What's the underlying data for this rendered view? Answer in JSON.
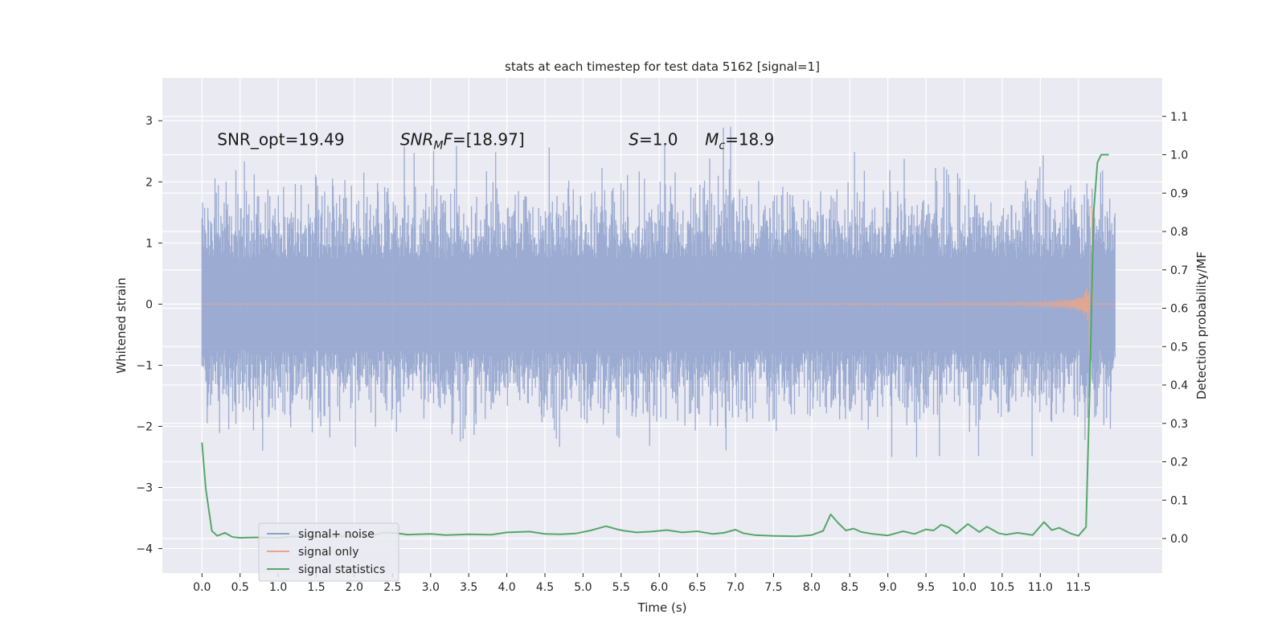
{
  "chart_data": {
    "type": "line",
    "title": "stats at each timestep for test data 5162 [signal=1]",
    "xlabel": "Time (s)",
    "ylabel": "Whitened strain",
    "y2label": "Detection probability/MF",
    "xlim": [
      -0.52,
      12.6
    ],
    "ylim": [
      -4.4,
      3.7
    ],
    "y2lim": [
      -0.09,
      1.2
    ],
    "xticks": [
      "0.0",
      "0.5",
      "1.0",
      "1.5",
      "2.0",
      "2.5",
      "3.0",
      "3.5",
      "4.0",
      "4.5",
      "5.0",
      "5.5",
      "6.0",
      "6.5",
      "7.0",
      "7.5",
      "8.0",
      "8.5",
      "9.0",
      "9.5",
      "10.0",
      "10.5",
      "11.0",
      "11.5"
    ],
    "yticks": [
      "3",
      "2",
      "1",
      "0",
      "−1",
      "−2",
      "−3",
      "−4"
    ],
    "y2ticks": [
      "1.1",
      "1.0",
      "0.9",
      "0.8",
      "0.7",
      "0.6",
      "0.5",
      "0.4",
      "0.3",
      "0.2",
      "0.1",
      "0.0"
    ],
    "grid": true,
    "legend_position": "lower-left",
    "annotations": [
      {
        "text": "SNR_opt=19.49",
        "x": 0.2,
        "y": 2.6
      },
      {
        "text": "SNR",
        "sub": "MF",
        "rest": "=[18.97]",
        "x": 2.6,
        "y": 2.6,
        "italic_prefix": true,
        "subtext": "M",
        "suffix_italic": "F"
      },
      {
        "text": "S",
        "rest": "=1.0",
        "x": 5.6,
        "y": 2.6,
        "italic_prefix": true
      },
      {
        "text": "M",
        "sub": "c",
        "rest": "=18.9",
        "x": 6.6,
        "y": 2.6,
        "italic_prefix": true
      }
    ],
    "series": [
      {
        "name": "signal+ noise",
        "color": "#8da0cb",
        "axis": "left",
        "kind": "noise",
        "t_range": [
          0.0,
          11.98
        ],
        "envelope": {
          "typical": 1.3,
          "peak": 2.6
        }
      },
      {
        "name": "signal only",
        "color": "#e8a58d",
        "axis": "left",
        "kind": "chirp",
        "t_range": [
          0.0,
          11.98
        ],
        "merger_time": 11.65,
        "peak_amplitude": 2.5
      },
      {
        "name": "signal statistics",
        "color": "#55a868",
        "axis": "right",
        "x": [
          0.0,
          0.05,
          0.13,
          0.2,
          0.3,
          0.4,
          0.5,
          0.7,
          1.0,
          1.2,
          1.5,
          1.8,
          2.0,
          2.2,
          2.4,
          2.55,
          2.7,
          3.0,
          3.2,
          3.5,
          3.8,
          4.0,
          4.3,
          4.5,
          4.7,
          4.9,
          5.1,
          5.3,
          5.45,
          5.55,
          5.7,
          5.9,
          6.1,
          6.3,
          6.5,
          6.7,
          6.85,
          7.0,
          7.1,
          7.25,
          7.5,
          7.8,
          8.0,
          8.15,
          8.25,
          8.35,
          8.45,
          8.55,
          8.65,
          8.8,
          9.0,
          9.2,
          9.35,
          9.5,
          9.6,
          9.7,
          9.8,
          9.9,
          10.05,
          10.2,
          10.3,
          10.45,
          10.55,
          10.7,
          10.9,
          11.05,
          11.15,
          11.25,
          11.4,
          11.5,
          11.6,
          11.65,
          11.7,
          11.75,
          11.8,
          11.85,
          11.9
        ],
        "y": [
          0.25,
          0.13,
          0.02,
          0.007,
          0.015,
          0.004,
          0.002,
          0.003,
          0.002,
          0.006,
          0.006,
          0.006,
          0.006,
          0.007,
          0.016,
          0.014,
          0.01,
          0.012,
          0.009,
          0.011,
          0.01,
          0.016,
          0.018,
          0.012,
          0.011,
          0.013,
          0.021,
          0.032,
          0.024,
          0.02,
          0.016,
          0.018,
          0.022,
          0.016,
          0.019,
          0.012,
          0.015,
          0.023,
          0.014,
          0.009,
          0.007,
          0.006,
          0.009,
          0.02,
          0.063,
          0.04,
          0.021,
          0.026,
          0.017,
          0.012,
          0.008,
          0.019,
          0.012,
          0.024,
          0.021,
          0.036,
          0.029,
          0.013,
          0.038,
          0.017,
          0.031,
          0.014,
          0.01,
          0.015,
          0.009,
          0.043,
          0.022,
          0.028,
          0.013,
          0.007,
          0.03,
          0.4,
          0.85,
          0.98,
          1.0,
          1.0,
          1.0
        ]
      }
    ]
  }
}
